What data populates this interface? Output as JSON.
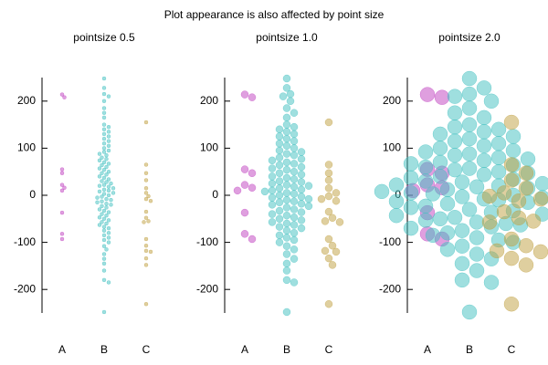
{
  "title": "Plot appearance is also affected by point size",
  "chart_data": [
    {
      "type": "swarm",
      "title": "pointsize 0.5",
      "point_size": 0.5,
      "categories": [
        "A",
        "B",
        "C"
      ],
      "colors": [
        "#c040c0",
        "#40c0c0",
        "#c0a040"
      ],
      "values": [
        [
          214,
          208,
          55,
          47,
          22,
          16,
          10,
          -37,
          -82,
          -93
        ],
        [
          248,
          228,
          215,
          210,
          200,
          185,
          175,
          165,
          150,
          145,
          140,
          135,
          130,
          125,
          120,
          115,
          110,
          105,
          100,
          95,
          92,
          88,
          85,
          80,
          77,
          74,
          70,
          67,
          64,
          60,
          57,
          54,
          50,
          47,
          44,
          40,
          37,
          34,
          30,
          28,
          25,
          22,
          20,
          18,
          15,
          12,
          10,
          8,
          5,
          3,
          0,
          -3,
          -5,
          -8,
          -10,
          -13,
          -15,
          -18,
          -20,
          -23,
          -26,
          -30,
          -33,
          -36,
          -40,
          -43,
          -47,
          -50,
          -53,
          -57,
          -60,
          -63,
          -67,
          -70,
          -75,
          -80,
          -85,
          -90,
          -95,
          -100,
          -108,
          -115,
          -125,
          -135,
          -145,
          -160,
          -180,
          -185,
          -248
        ],
        [
          155,
          65,
          47,
          32,
          15,
          5,
          -2,
          -8,
          -12,
          -35,
          -48,
          -55,
          -57,
          -93,
          -107,
          -118,
          -120,
          -134,
          -148,
          -231
        ]
      ],
      "ylim": [
        -250,
        250
      ],
      "yticks": [
        -200,
        -100,
        0,
        100,
        200
      ]
    },
    {
      "type": "swarm",
      "title": "pointsize 1.0",
      "point_size": 1.0,
      "categories": [
        "A",
        "B",
        "C"
      ],
      "colors": [
        "#c040c0",
        "#40c0c0",
        "#c0a040"
      ],
      "values": [
        [
          214,
          208,
          55,
          47,
          22,
          16,
          10,
          -37,
          -82,
          -93
        ],
        [
          248,
          228,
          215,
          210,
          200,
          185,
          175,
          165,
          150,
          145,
          140,
          135,
          130,
          125,
          120,
          115,
          110,
          105,
          100,
          95,
          92,
          88,
          85,
          80,
          77,
          74,
          70,
          67,
          64,
          60,
          57,
          54,
          50,
          47,
          44,
          40,
          37,
          34,
          30,
          28,
          25,
          22,
          20,
          18,
          15,
          12,
          10,
          8,
          5,
          3,
          0,
          -3,
          -5,
          -8,
          -10,
          -13,
          -15,
          -18,
          -20,
          -23,
          -26,
          -30,
          -33,
          -36,
          -40,
          -43,
          -47,
          -50,
          -53,
          -57,
          -60,
          -63,
          -67,
          -70,
          -75,
          -80,
          -85,
          -90,
          -95,
          -100,
          -108,
          -115,
          -125,
          -135,
          -145,
          -160,
          -180,
          -185,
          -248
        ],
        [
          155,
          65,
          47,
          32,
          15,
          5,
          -2,
          -8,
          -12,
          -35,
          -48,
          -55,
          -57,
          -93,
          -107,
          -118,
          -120,
          -134,
          -148,
          -231
        ]
      ],
      "ylim": [
        -250,
        250
      ],
      "yticks": [
        -200,
        -100,
        0,
        100,
        200
      ]
    },
    {
      "type": "swarm",
      "title": "pointsize 2.0",
      "point_size": 2.0,
      "categories": [
        "A",
        "B",
        "C"
      ],
      "colors": [
        "#c040c0",
        "#40c0c0",
        "#c0a040"
      ],
      "values": [
        [
          214,
          208,
          55,
          47,
          22,
          16,
          10,
          -37,
          -82,
          -93
        ],
        [
          248,
          228,
          215,
          210,
          200,
          185,
          175,
          165,
          150,
          145,
          140,
          135,
          130,
          125,
          120,
          115,
          110,
          105,
          100,
          95,
          92,
          88,
          85,
          80,
          77,
          74,
          70,
          67,
          64,
          60,
          57,
          54,
          50,
          47,
          44,
          40,
          37,
          34,
          30,
          28,
          25,
          22,
          20,
          18,
          15,
          12,
          10,
          8,
          5,
          3,
          0,
          -3,
          -5,
          -8,
          -10,
          -13,
          -15,
          -18,
          -20,
          -23,
          -26,
          -30,
          -33,
          -36,
          -40,
          -43,
          -47,
          -50,
          -53,
          -57,
          -60,
          -63,
          -67,
          -70,
          -75,
          -80,
          -85,
          -90,
          -95,
          -100,
          -108,
          -115,
          -125,
          -135,
          -145,
          -160,
          -180,
          -185,
          -248
        ],
        [
          155,
          65,
          47,
          32,
          15,
          5,
          -2,
          -8,
          -12,
          -35,
          -48,
          -55,
          -57,
          -93,
          -107,
          -118,
          -120,
          -134,
          -148,
          -231
        ]
      ],
      "ylim": [
        -250,
        250
      ],
      "yticks": [
        -200,
        -100,
        0,
        100,
        200
      ]
    }
  ]
}
